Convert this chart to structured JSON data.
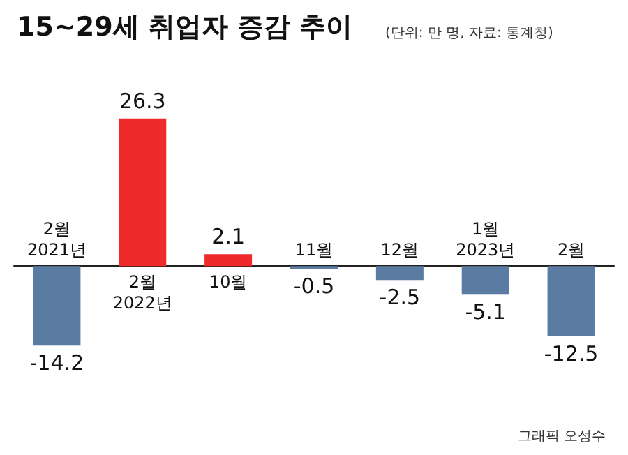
{
  "chart_data": {
    "type": "bar",
    "title": "15~29세 취업자 증감 추이",
    "subtitle": "(단위: 만 명, 자료: 통계청)",
    "categories": [
      "2월\n2021년",
      "2월\n2022년",
      "10월",
      "11월",
      "12월",
      "1월\n2023년",
      "2월"
    ],
    "values": [
      -14.2,
      26.3,
      2.1,
      -0.5,
      -2.5,
      -5.1,
      -12.5
    ],
    "colors": [
      "#5a7ca3",
      "#ee2a2a",
      "#ee2a2a",
      "#5a7ca3",
      "#5a7ca3",
      "#5a7ca3",
      "#5a7ca3"
    ],
    "data_labels": true,
    "annotations": [
      "그래픽 오성수"
    ]
  }
}
